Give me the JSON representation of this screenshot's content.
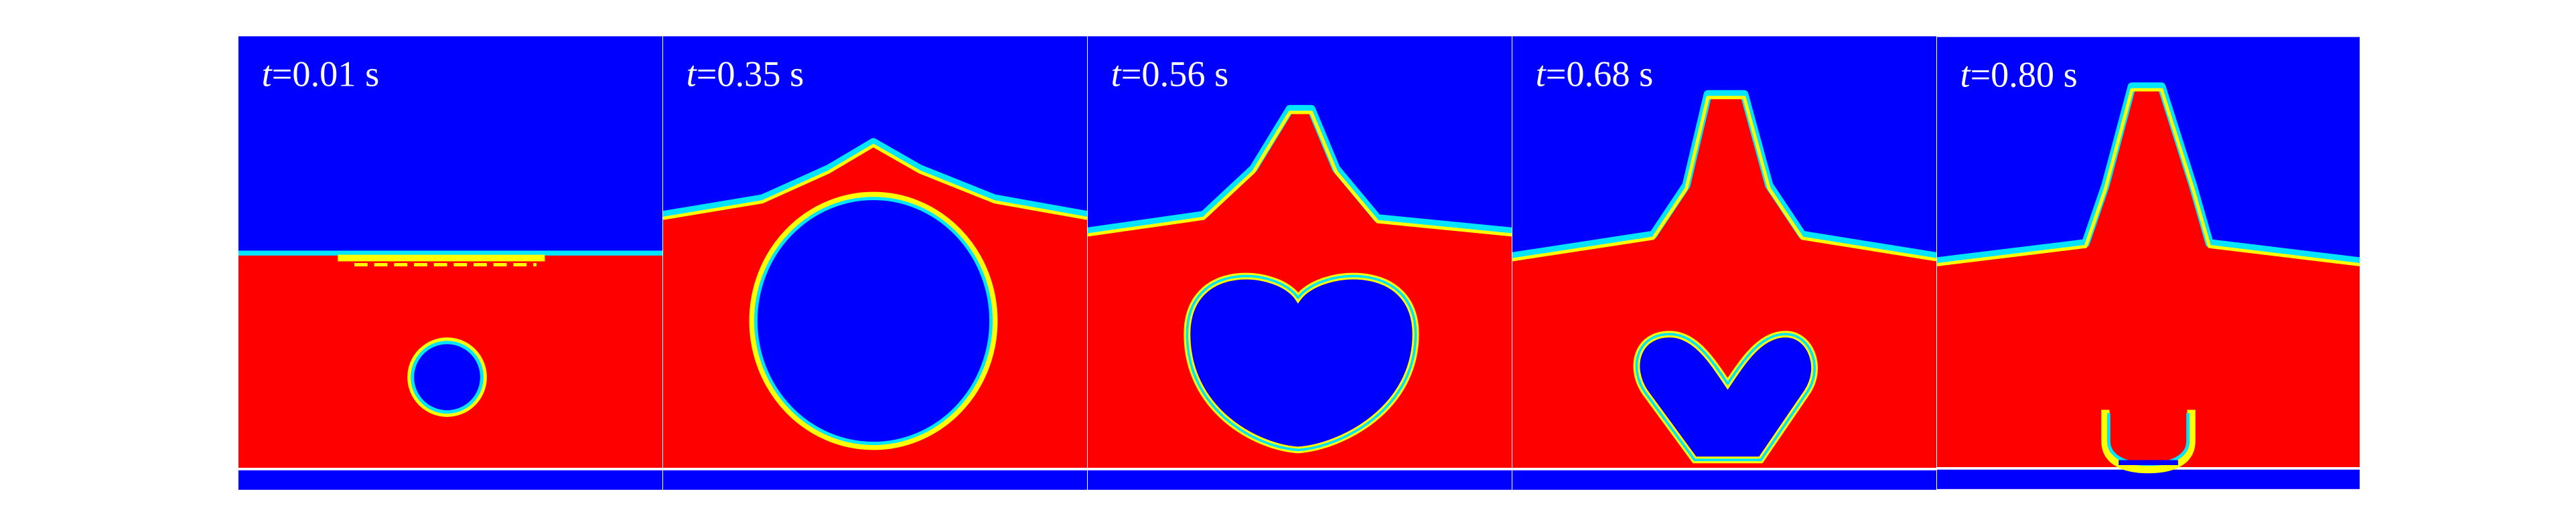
{
  "panels": [
    {
      "variable": "t",
      "time": "=0.01 s"
    },
    {
      "variable": "t",
      "time": "=0.35 s"
    },
    {
      "variable": "t",
      "time": "=0.56 s"
    },
    {
      "variable": "t",
      "time": "=0.68 s"
    },
    {
      "variable": "t",
      "time": "=0.80 s"
    }
  ]
}
